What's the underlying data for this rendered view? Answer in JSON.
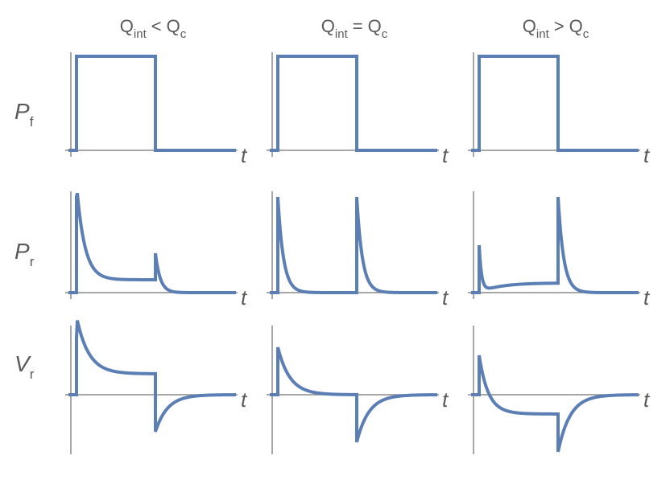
{
  "columns": [
    {
      "left": "Q",
      "left_sub": "int",
      "relation": "<",
      "right": "Q",
      "right_sub": "c"
    },
    {
      "left": "Q",
      "left_sub": "int",
      "relation": "=",
      "right": "Q",
      "right_sub": "c"
    },
    {
      "left": "Q",
      "left_sub": "int",
      "relation": ">",
      "right": "Q",
      "right_sub": "c"
    }
  ],
  "rows": [
    {
      "symbol": "P",
      "sub": "f"
    },
    {
      "symbol": "P",
      "sub": "r"
    },
    {
      "symbol": "V",
      "sub": "r"
    }
  ],
  "axis_label": "t"
}
